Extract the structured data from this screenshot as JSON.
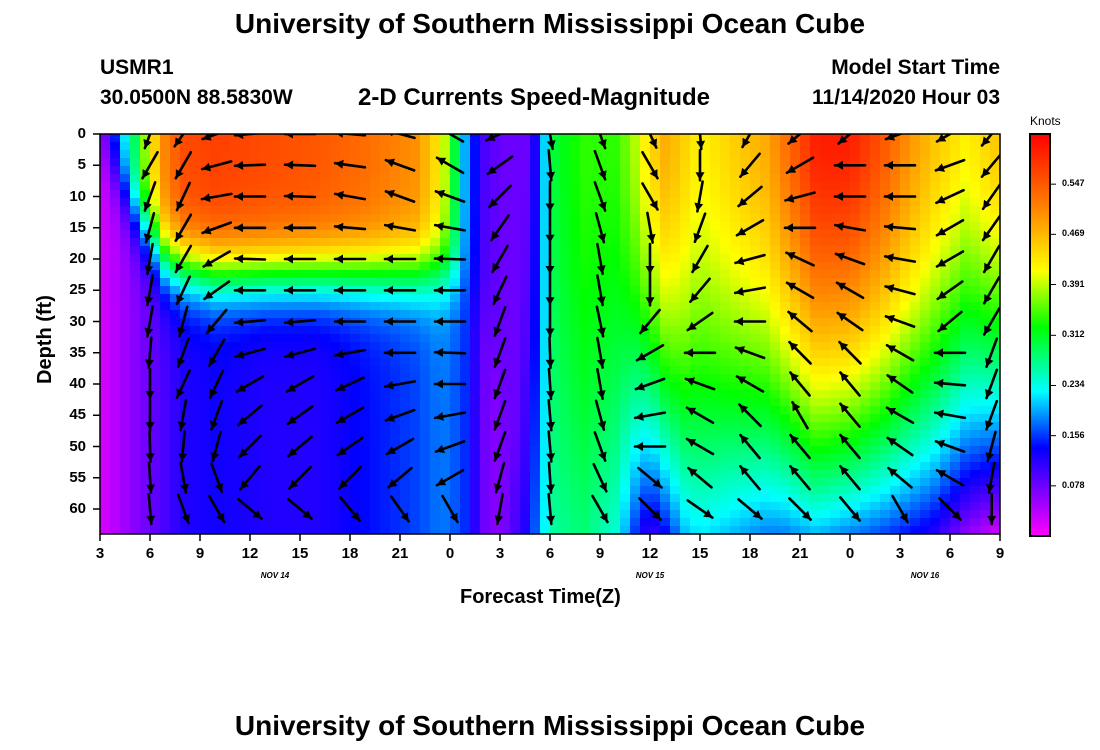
{
  "header": {
    "title": "University of Southern Mississippi Ocean Cube",
    "station_id": "USMR1",
    "location": "30.0500N 88.5830W",
    "subtitle": "2-D Currents Speed-Magnitude",
    "model_start_label": "Model Start Time",
    "model_start_value": "11/14/2020 Hour 03"
  },
  "footer": {
    "title": "University of Southern Mississippi Ocean Cube"
  },
  "colorbar": {
    "units": "Knots",
    "ticks": [
      0.547,
      0.469,
      0.391,
      0.312,
      0.234,
      0.156,
      0.078
    ],
    "min": 0.0,
    "max": 0.625
  },
  "chart_data": {
    "type": "heatmap",
    "title": "2-D Currents Speed-Magnitude",
    "xlabel": "Forecast Time(Z)",
    "ylabel": "Depth (ft)",
    "x_range_hours": [
      0,
      54
    ],
    "y_range_ft": [
      0,
      64
    ],
    "x_ticks": [
      {
        "hour": 0,
        "label": "3"
      },
      {
        "hour": 3,
        "label": "6"
      },
      {
        "hour": 6,
        "label": "9"
      },
      {
        "hour": 9,
        "label": "12"
      },
      {
        "hour": 12,
        "label": "15"
      },
      {
        "hour": 15,
        "label": "18"
      },
      {
        "hour": 18,
        "label": "21"
      },
      {
        "hour": 21,
        "label": "0"
      },
      {
        "hour": 24,
        "label": "3"
      },
      {
        "hour": 27,
        "label": "6"
      },
      {
        "hour": 30,
        "label": "9"
      },
      {
        "hour": 33,
        "label": "12"
      },
      {
        "hour": 36,
        "label": "15"
      },
      {
        "hour": 39,
        "label": "18"
      },
      {
        "hour": 42,
        "label": "21"
      },
      {
        "hour": 45,
        "label": "0"
      },
      {
        "hour": 48,
        "label": "3"
      },
      {
        "hour": 51,
        "label": "6"
      },
      {
        "hour": 54,
        "label": "9"
      }
    ],
    "y_ticks": [
      0,
      5,
      10,
      15,
      20,
      25,
      30,
      35,
      40,
      45,
      50,
      55,
      60
    ],
    "date_labels": [
      {
        "hour": 10.5,
        "label": "NOV 14"
      },
      {
        "hour": 33,
        "label": "NOV 15"
      },
      {
        "hour": 49.5,
        "label": "NOV 16"
      }
    ],
    "speed_knots_by_hour": {
      "hours": [
        0,
        1,
        2,
        3,
        4,
        5,
        7,
        10,
        13,
        16,
        19,
        20.5,
        21.2,
        22,
        23,
        24,
        25.5,
        26.5,
        27,
        29,
        31,
        32,
        33,
        34,
        35,
        36,
        38,
        40,
        41,
        43,
        45,
        47,
        48.5,
        50,
        52,
        54
      ],
      "surface": [
        0.06,
        0.18,
        0.28,
        0.42,
        0.52,
        0.56,
        0.57,
        0.56,
        0.55,
        0.53,
        0.5,
        0.42,
        0.32,
        0.18,
        0.1,
        0.08,
        0.08,
        0.15,
        0.3,
        0.34,
        0.34,
        0.38,
        0.44,
        0.48,
        0.45,
        0.42,
        0.45,
        0.48,
        0.52,
        0.6,
        0.6,
        0.55,
        0.5,
        0.46,
        0.42,
        0.46
      ],
      "thermocline_depth_ft": [
        2,
        6,
        12,
        16,
        20,
        21,
        22,
        22,
        22,
        22,
        22,
        22,
        22,
        23,
        28,
        40,
        64,
        64,
        64,
        64,
        64,
        64,
        64,
        64,
        64,
        64,
        64,
        64,
        64,
        64,
        64,
        64,
        64,
        64,
        64,
        64
      ],
      "bottom": [
        0.02,
        0.04,
        0.06,
        0.08,
        0.1,
        0.12,
        0.13,
        0.12,
        0.12,
        0.14,
        0.16,
        0.18,
        0.17,
        0.15,
        0.08,
        0.06,
        0.12,
        0.2,
        0.26,
        0.28,
        0.24,
        0.16,
        0.1,
        0.14,
        0.2,
        0.22,
        0.2,
        0.18,
        0.18,
        0.2,
        0.18,
        0.16,
        0.14,
        0.12,
        0.06,
        0.02
      ]
    },
    "current_vectors": {
      "depths_ft": [
        0,
        5,
        10,
        15,
        20,
        25,
        30,
        35,
        40,
        45,
        50,
        55,
        60
      ],
      "columns": [
        {
          "hour": 3,
          "dirs_deg": [
            200,
            210,
            200,
            195,
            190,
            190,
            190,
            185,
            180,
            180,
            178,
            176,
            175
          ]
        },
        {
          "hour": 5,
          "dirs_deg": [
            215,
            210,
            205,
            210,
            210,
            205,
            195,
            200,
            205,
            190,
            185,
            170,
            160
          ]
        },
        {
          "hour": 7,
          "dirs_deg": [
            250,
            255,
            260,
            250,
            240,
            235,
            220,
            210,
            205,
            200,
            195,
            160,
            150
          ]
        },
        {
          "hour": 9,
          "dirs_deg": [
            265,
            268,
            270,
            270,
            272,
            270,
            265,
            255,
            240,
            230,
            225,
            220,
            130
          ]
        },
        {
          "hour": 12,
          "dirs_deg": [
            270,
            272,
            272,
            270,
            270,
            270,
            265,
            255,
            240,
            235,
            230,
            225,
            130
          ]
        },
        {
          "hour": 15,
          "dirs_deg": [
            275,
            278,
            280,
            275,
            270,
            270,
            270,
            260,
            245,
            240,
            235,
            225,
            140
          ]
        },
        {
          "hour": 18,
          "dirs_deg": [
            285,
            290,
            290,
            280,
            270,
            270,
            270,
            270,
            260,
            250,
            240,
            230,
            145
          ]
        },
        {
          "hour": 21,
          "dirs_deg": [
            300,
            300,
            290,
            280,
            272,
            270,
            270,
            272,
            270,
            260,
            250,
            240,
            150
          ]
        },
        {
          "hour": 24,
          "dirs_deg": [
            245,
            235,
            225,
            215,
            210,
            205,
            200,
            200,
            200,
            200,
            200,
            195,
            190
          ]
        },
        {
          "hour": 27,
          "dirs_deg": [
            170,
            175,
            180,
            180,
            180,
            180,
            180,
            178,
            176,
            175,
            175,
            176,
            175
          ]
        },
        {
          "hour": 30,
          "dirs_deg": [
            160,
            160,
            160,
            165,
            170,
            170,
            168,
            170,
            170,
            165,
            160,
            155,
            150
          ]
        },
        {
          "hour": 33,
          "dirs_deg": [
            155,
            150,
            150,
            170,
            180,
            180,
            220,
            240,
            250,
            260,
            270,
            130,
            135
          ]
        },
        {
          "hour": 36,
          "dirs_deg": [
            175,
            180,
            190,
            200,
            210,
            220,
            235,
            270,
            290,
            300,
            300,
            310,
            125
          ]
        },
        {
          "hour": 39,
          "dirs_deg": [
            210,
            220,
            230,
            240,
            255,
            260,
            270,
            290,
            300,
            315,
            320,
            320,
            130
          ]
        },
        {
          "hour": 42,
          "dirs_deg": [
            230,
            240,
            255,
            270,
            295,
            300,
            310,
            315,
            320,
            330,
            320,
            320,
            135
          ]
        },
        {
          "hour": 45,
          "dirs_deg": [
            230,
            270,
            270,
            280,
            290,
            300,
            305,
            315,
            320,
            320,
            320,
            320,
            140
          ]
        },
        {
          "hour": 48,
          "dirs_deg": [
            250,
            270,
            270,
            275,
            280,
            285,
            290,
            300,
            305,
            300,
            305,
            310,
            150
          ]
        },
        {
          "hour": 51,
          "dirs_deg": [
            240,
            250,
            245,
            240,
            240,
            235,
            230,
            270,
            275,
            280,
            290,
            300,
            135
          ]
        },
        {
          "hour": 53.5,
          "dirs_deg": [
            220,
            220,
            215,
            215,
            210,
            210,
            210,
            200,
            200,
            200,
            195,
            190,
            180
          ]
        }
      ]
    }
  }
}
